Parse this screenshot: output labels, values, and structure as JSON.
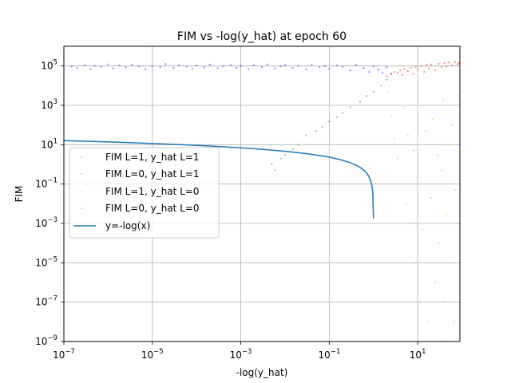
{
  "chart_data": {
    "type": "scatter",
    "title": "FIM vs -log(y_hat) at epoch 60",
    "xlabel": "-log(y_hat)",
    "ylabel": "FIM",
    "xscale": "log",
    "yscale": "log",
    "xlim": [
      1e-07,
      90
    ],
    "ylim": [
      1e-09,
      1000000.0
    ],
    "grid": true,
    "legend_position": "center-left",
    "x_ticks": [
      {
        "value": 1e-07,
        "base": "10",
        "exp": "−7"
      },
      {
        "value": 1e-05,
        "base": "10",
        "exp": "−5"
      },
      {
        "value": 0.001,
        "base": "10",
        "exp": "−3"
      },
      {
        "value": 0.1,
        "base": "10",
        "exp": "−1"
      },
      {
        "value": 10,
        "base": "10",
        "exp": "1"
      }
    ],
    "y_ticks": [
      {
        "value": 1e-09,
        "base": "10",
        "exp": "−9"
      },
      {
        "value": 1e-07,
        "base": "10",
        "exp": "−7"
      },
      {
        "value": 1e-05,
        "base": "10",
        "exp": "−5"
      },
      {
        "value": 0.001,
        "base": "10",
        "exp": "−3"
      },
      {
        "value": 0.1,
        "base": "10",
        "exp": "−1"
      },
      {
        "value": 10,
        "base": "10",
        "exp": "1"
      },
      {
        "value": 1000,
        "base": "10",
        "exp": "3"
      },
      {
        "value": 100000,
        "base": "10",
        "exp": "5"
      }
    ],
    "series": [
      {
        "name": "FIM L=1, y_hat L=1",
        "kind": "scatter",
        "color": "#0000ff",
        "points": [
          [
            1.5e-07,
            95000
          ],
          [
            2e-07,
            80000
          ],
          [
            3e-07,
            110000
          ],
          [
            4e-07,
            70000
          ],
          [
            5e-07,
            100000
          ],
          [
            7e-07,
            90000
          ],
          [
            1e-06,
            120000
          ],
          [
            1.3e-06,
            75000
          ],
          [
            1.8e-06,
            105000
          ],
          [
            2.5e-06,
            85000
          ],
          [
            3.5e-06,
            115000
          ],
          [
            5e-06,
            95000
          ],
          [
            7e-06,
            70000
          ],
          [
            1e-05,
            100000
          ],
          [
            1.5e-05,
            88000
          ],
          [
            2e-05,
            125000
          ],
          [
            3e-05,
            80000
          ],
          [
            4e-05,
            110000
          ],
          [
            6e-05,
            92000
          ],
          [
            8e-05,
            72000
          ],
          [
            0.0001,
            105000
          ],
          [
            0.00015,
            85000
          ],
          [
            0.0002,
            118000
          ],
          [
            0.0003,
            78000
          ],
          [
            0.0004,
            98000
          ],
          [
            0.0006,
            112000
          ],
          [
            0.0008,
            82000
          ],
          [
            0.001,
            100000
          ],
          [
            0.0015,
            70000
          ],
          [
            0.002,
            108000
          ],
          [
            0.003,
            88000
          ],
          [
            0.004,
            120000
          ],
          [
            0.006,
            76000
          ],
          [
            0.008,
            96000
          ],
          [
            0.01,
            110000
          ],
          [
            0.015,
            80000
          ],
          [
            0.02,
            102000
          ],
          [
            0.03,
            68000
          ],
          [
            0.04,
            115000
          ],
          [
            0.06,
            86000
          ],
          [
            0.08,
            98000
          ],
          [
            0.1,
            72000
          ],
          [
            0.15,
            108000
          ],
          [
            0.2,
            90000
          ],
          [
            0.3,
            60000
          ],
          [
            0.4,
            112000
          ],
          [
            0.6,
            78000
          ],
          [
            0.8,
            50000
          ],
          [
            1.0,
            95000
          ],
          [
            1.3,
            65000
          ],
          [
            1.6,
            45000
          ],
          [
            2.0,
            85000
          ],
          [
            2.5,
            40000
          ]
        ]
      },
      {
        "name": "FIM L=0, y_hat L=1",
        "kind": "scatter",
        "color": "#008000",
        "points": [
          [
            0.005,
            1.0
          ],
          [
            0.006,
            0.5
          ],
          [
            0.008,
            2.0
          ],
          [
            0.01,
            3.0
          ],
          [
            0.015,
            6.0
          ],
          [
            0.02,
            10.0
          ],
          [
            0.03,
            30.0
          ],
          [
            0.05,
            50.0
          ],
          [
            0.07,
            80.0
          ],
          [
            0.1,
            150.0
          ],
          [
            0.15,
            250.0
          ],
          [
            0.2,
            400.0
          ],
          [
            0.3,
            800.0
          ],
          [
            0.5,
            1500.0
          ],
          [
            0.7,
            3000.0
          ],
          [
            1.0,
            5000.0
          ],
          [
            1.5,
            10000.0
          ],
          [
            2.0,
            20000.0
          ]
        ]
      },
      {
        "name": "FIM L=1, y_hat L=0",
        "kind": "scatter",
        "color": "#ffa500",
        "points": [
          [
            2.2,
            5000
          ],
          [
            2.5,
            300
          ],
          [
            3,
            20
          ],
          [
            3.5,
            2
          ],
          [
            4,
            0.1
          ],
          [
            5,
            800
          ],
          [
            5.5,
            0.01
          ],
          [
            6,
            30
          ],
          [
            7,
            0.001
          ],
          [
            8,
            5
          ],
          [
            9,
            1e-05
          ],
          [
            10,
            0.2
          ],
          [
            11,
            1e-07
          ],
          [
            12,
            1000
          ],
          [
            13,
            0.0005
          ],
          [
            15,
            50
          ],
          [
            17,
            1e-08
          ],
          [
            20,
            0.02
          ],
          [
            22,
            200
          ],
          [
            25,
            1e-06
          ],
          [
            28,
            3
          ],
          [
            30,
            0.0001
          ],
          [
            32,
            1e-09
          ],
          [
            35,
            0.5
          ],
          [
            38,
            2000
          ],
          [
            40,
            1e-07
          ],
          [
            45,
            0.003
          ],
          [
            50,
            10
          ],
          [
            55,
            1e-05
          ],
          [
            60,
            100
          ],
          [
            65,
            1e-08
          ],
          [
            70,
            0.05
          ],
          [
            75,
            3000
          ],
          [
            80,
            0.001
          ]
        ]
      },
      {
        "name": "FIM L=0, y_hat L=0",
        "kind": "scatter",
        "color": "#ff0000",
        "points": [
          [
            2,
            30000
          ],
          [
            2.5,
            40000
          ],
          [
            3,
            50000
          ],
          [
            3.5,
            45000
          ],
          [
            4,
            60000
          ],
          [
            4.5,
            35000
          ],
          [
            5,
            70000
          ],
          [
            6,
            55000
          ],
          [
            7,
            80000
          ],
          [
            8,
            40000
          ],
          [
            9,
            90000
          ],
          [
            10,
            65000
          ],
          [
            12,
            100000
          ],
          [
            14,
            50000
          ],
          [
            16,
            110000
          ],
          [
            18,
            75000
          ],
          [
            20,
            120000
          ],
          [
            25,
            60000
          ],
          [
            30,
            130000
          ],
          [
            35,
            85000
          ],
          [
            40,
            140000
          ],
          [
            45,
            95000
          ],
          [
            50,
            150000
          ],
          [
            60,
            110000
          ],
          [
            70,
            160000
          ],
          [
            80,
            120000
          ],
          [
            85,
            140000
          ]
        ]
      },
      {
        "name": "y=-log(x)",
        "kind": "line",
        "color": "#1f77b4"
      }
    ]
  }
}
